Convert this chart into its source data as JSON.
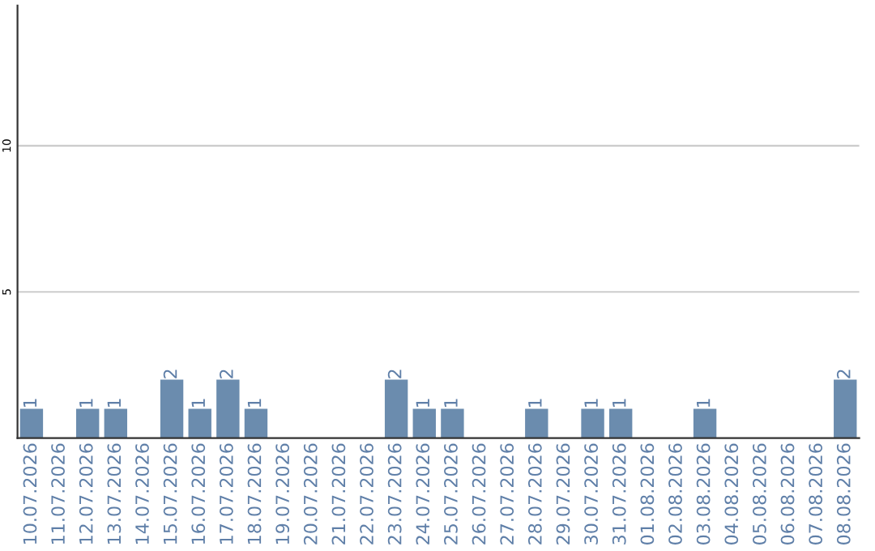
{
  "chart_data": {
    "type": "bar",
    "categories": [
      "10.07.2026",
      "11.07.2026",
      "12.07.2026",
      "13.07.2026",
      "14.07.2026",
      "15.07.2026",
      "16.07.2026",
      "17.07.2026",
      "18.07.2026",
      "19.07.2026",
      "20.07.2026",
      "21.07.2026",
      "22.07.2026",
      "23.07.2026",
      "24.07.2026",
      "25.07.2026",
      "26.07.2026",
      "27.07.2026",
      "28.07.2026",
      "29.07.2026",
      "30.07.2026",
      "31.07.2026",
      "01.08.2026",
      "02.08.2026",
      "03.08.2026",
      "04.08.2026",
      "05.08.2026",
      "06.08.2026",
      "07.08.2026",
      "08.08.2026"
    ],
    "values": [
      1,
      0,
      1,
      1,
      0,
      2,
      1,
      2,
      1,
      0,
      0,
      0,
      0,
      2,
      1,
      1,
      0,
      0,
      1,
      0,
      1,
      1,
      0,
      0,
      1,
      0,
      0,
      0,
      0,
      2
    ],
    "value_labels": [
      "1",
      null,
      "1",
      "1",
      null,
      "2",
      "1",
      "2",
      "1",
      null,
      null,
      null,
      null,
      "2",
      "1",
      "1",
      null,
      null,
      "1",
      null,
      "1",
      "1",
      null,
      null,
      "1",
      null,
      null,
      null,
      null,
      "2"
    ],
    "color": "#6b8cae",
    "ylim": [
      0,
      14.8
    ],
    "yticks": [
      5,
      10
    ],
    "grid": "y"
  }
}
